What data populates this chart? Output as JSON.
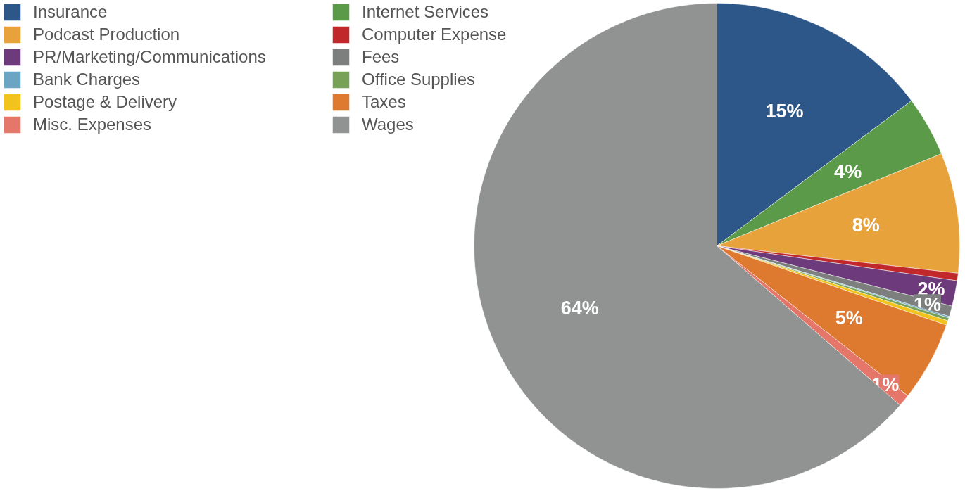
{
  "chart_data": {
    "type": "pie",
    "categories": [
      "Insurance",
      "Internet Services",
      "Podcast Production",
      "Computer Expense",
      "PR/Marketing/Communications",
      "Fees",
      "Bank Charges",
      "Office Supplies",
      "Postage & Delivery",
      "Taxes",
      "Misc. Expenses",
      "Wages"
    ],
    "values": [
      14.8,
      4.0,
      8.0,
      0.5,
      1.7,
      0.7,
      0.1,
      0.2,
      0.3,
      5.3,
      0.8,
      63.6
    ],
    "colors": [
      "#2d5689",
      "#5a9a48",
      "#e8a23c",
      "#c0282c",
      "#6d3a7c",
      "#7d7f7e",
      "#6aa6c4",
      "#76a156",
      "#f2c31c",
      "#de7a30",
      "#e5766a",
      "#909392"
    ],
    "value_labels": [
      "15%",
      "4%",
      "8%",
      null,
      "2%",
      "1%",
      null,
      null,
      null,
      "5%",
      "1%",
      "64%"
    ],
    "legend": "top left"
  }
}
